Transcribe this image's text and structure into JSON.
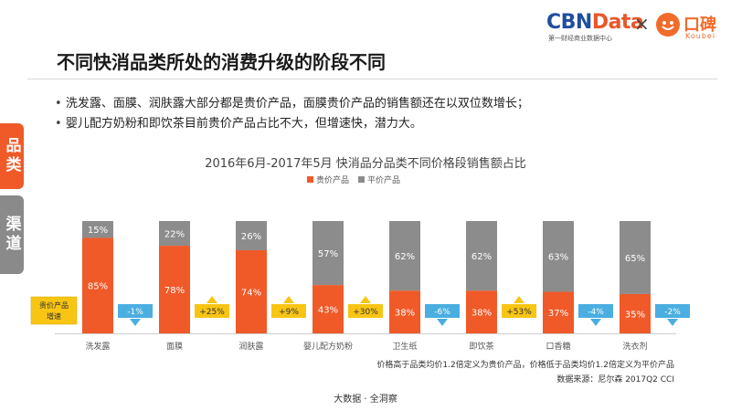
{
  "brand": {
    "cbn": "CBN",
    "data": "Data",
    "cbn_sub": "第一财经商业数据中心",
    "times": "×",
    "koubei_name": "口碑",
    "koubei_sub": "Koubei"
  },
  "header": {
    "title": "不同快消品类所处的消费升级的阶段不同"
  },
  "bullets": [
    "洗发露、面膜、润肤露大部分都是贵价产品，面膜贵价产品的销售额还在以双位数增长；",
    "婴儿配方奶粉和即饮茶目前贵价产品占比不大，但增速快，潜力大。"
  ],
  "side_tabs": [
    "品类",
    "渠道"
  ],
  "legend_box": {
    "line1": "贵价产品",
    "line2": "增速"
  },
  "notes": {
    "definition": "价格高于品类均价1.2倍定义为贵价产品，价格低于品类均价1.2倍定义为平价产品",
    "source": "数据来源：尼尔森 2017Q2 CCI"
  },
  "footer": "大数据 · 全洞察",
  "colors": {
    "premium": "#f05a28",
    "regular": "#8c8c8c",
    "growth_up": "#f8c514",
    "growth_down": "#4aaee0"
  },
  "chart_data": {
    "type": "bar",
    "stacked": true,
    "title": "2016年6月-2017年5月 快消品分品类不同价格段销售额占比",
    "categories": [
      "洗发露",
      "面膜",
      "润肤露",
      "婴儿配方奶粉",
      "卫生纸",
      "即饮茶",
      "口香糖",
      "洗衣剂"
    ],
    "series": [
      {
        "name": "贵价产品",
        "values": [
          85,
          78,
          74,
          43,
          38,
          38,
          37,
          35
        ],
        "labels": [
          "85%",
          "78%",
          "74%",
          "43%",
          "38%",
          "38%",
          "37%",
          "35%"
        ]
      },
      {
        "name": "平价产品",
        "values": [
          15,
          22,
          26,
          57,
          62,
          62,
          63,
          65
        ],
        "labels": [
          "15%",
          "22%",
          "26%",
          "57%",
          "62%",
          "62%",
          "63%",
          "65%"
        ]
      }
    ],
    "premium_growth": [
      {
        "value": -1,
        "label": "-1%"
      },
      {
        "value": 25,
        "label": "+25%"
      },
      {
        "value": 9,
        "label": "+9%"
      },
      {
        "value": 30,
        "label": "+30%"
      },
      {
        "value": -6,
        "label": "-6%"
      },
      {
        "value": 53,
        "label": "+53%"
      },
      {
        "value": -4,
        "label": "-4%"
      },
      {
        "value": -2,
        "label": "-2%"
      }
    ],
    "ylim": [
      0,
      100
    ],
    "legend_position": "top-center"
  }
}
